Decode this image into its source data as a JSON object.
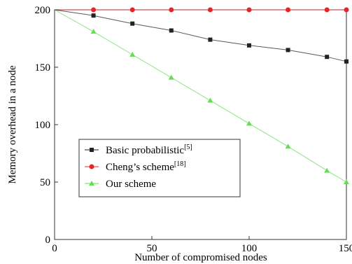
{
  "chart_data": {
    "type": "line",
    "title": "",
    "xlabel": "Number of compromised nodes",
    "ylabel": "Memory overhead in a node",
    "xlim": [
      0,
      150
    ],
    "ylim": [
      0,
      200
    ],
    "xticks": [
      "0",
      "50",
      "100",
      "150"
    ],
    "yticks": [
      "0",
      "50",
      "100",
      "150",
      "200"
    ],
    "grid": false,
    "legend_position": "bottom-left",
    "series": [
      {
        "name": "Basic probabilistic",
        "ref": "[5]",
        "color": "#222222",
        "marker": "square",
        "x": [
          20,
          40,
          60,
          80,
          100,
          120,
          140,
          150
        ],
        "y": [
          195,
          188,
          182,
          174,
          169,
          165,
          159,
          155
        ]
      },
      {
        "name": "Cheng’s scheme",
        "ref": "[18]",
        "color": "#e8242a",
        "marker": "circle",
        "x": [
          20,
          40,
          60,
          80,
          100,
          120,
          140,
          150
        ],
        "y": [
          200,
          200,
          200,
          200,
          200,
          200,
          200,
          200
        ]
      },
      {
        "name": "Our scheme",
        "ref": "",
        "color": "#66dd55",
        "marker": "triangle",
        "x": [
          20,
          40,
          60,
          80,
          100,
          120,
          140,
          150
        ],
        "y": [
          181,
          161,
          141,
          121,
          101,
          81,
          60,
          50
        ]
      }
    ]
  }
}
